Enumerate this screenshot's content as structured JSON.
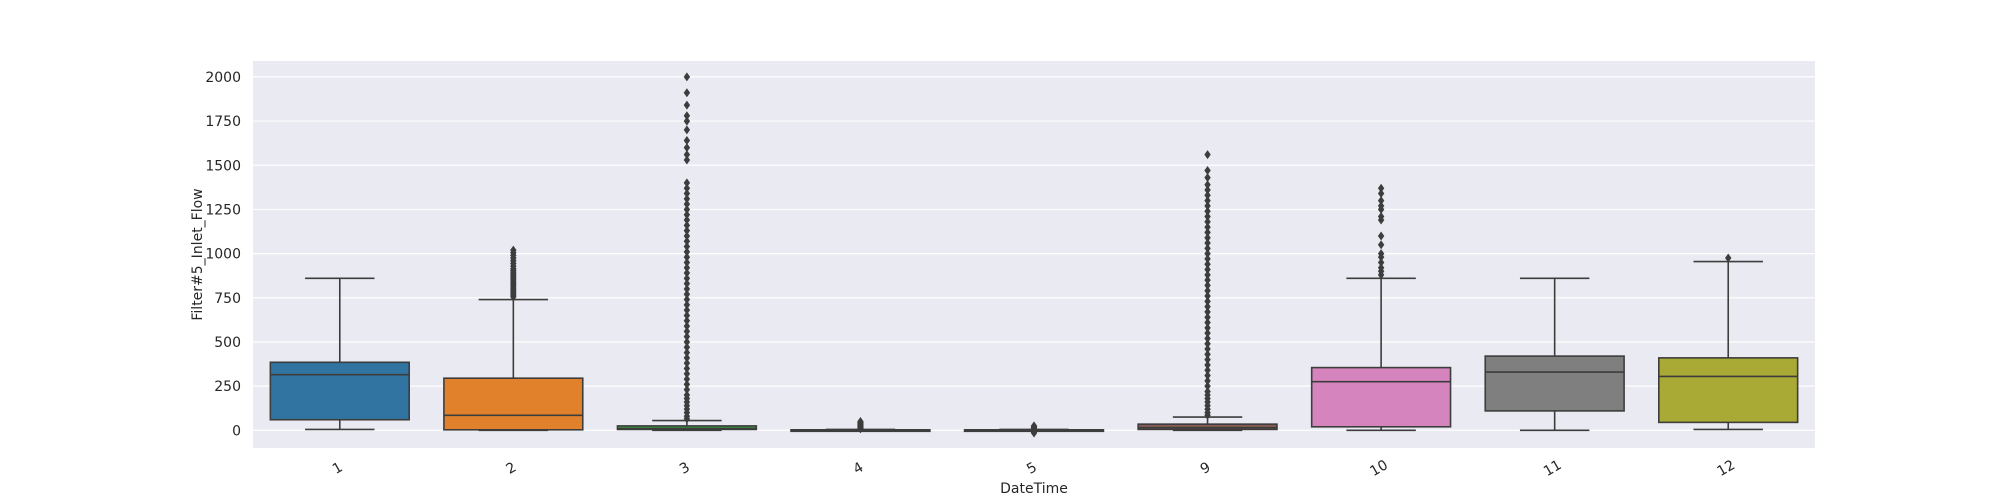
{
  "chart_data": {
    "type": "box",
    "title": "",
    "xlabel": "DateTime",
    "ylabel": "Filter#5_Inlet_Flow",
    "ylim": [
      -100,
      2090
    ],
    "yticks": [
      0,
      250,
      500,
      750,
      1000,
      1250,
      1500,
      1750,
      2000
    ],
    "grid": true,
    "background": "#eaeaf2",
    "categories": [
      "1",
      "2",
      "3",
      "4",
      "5",
      "9",
      "10",
      "11",
      "12"
    ],
    "boxes": [
      {
        "category": "1",
        "color": "#3274a1",
        "whisker_low": 5,
        "q1": 60,
        "median": 315,
        "q3": 385,
        "whisker_high": 860,
        "outliers": []
      },
      {
        "category": "2",
        "color": "#e1812c",
        "whisker_low": 0,
        "q1": 3,
        "median": 85,
        "q3": 295,
        "whisker_high": 740,
        "outliers": [
          755,
          765,
          775,
          785,
          795,
          805,
          815,
          825,
          835,
          845,
          855,
          865,
          875,
          885,
          895,
          905,
          915,
          930,
          945,
          960,
          975,
          990,
          1005,
          1020
        ]
      },
      {
        "category": "3",
        "color": "#3a923a",
        "whisker_low": 0,
        "q1": 5,
        "median": 10,
        "q3": 25,
        "whisker_high": 55,
        "outliers": [
          65,
          80,
          100,
          120,
          140,
          160,
          180,
          200,
          230,
          260,
          290,
          320,
          350,
          380,
          410,
          440,
          470,
          500,
          530,
          560,
          590,
          620,
          650,
          680,
          710,
          740,
          770,
          800,
          830,
          860,
          890,
          920,
          950,
          980,
          1010,
          1040,
          1070,
          1100,
          1130,
          1160,
          1190,
          1220,
          1250,
          1280,
          1310,
          1340,
          1370,
          1400,
          1530,
          1560,
          1600,
          1640,
          1700,
          1750,
          1780,
          1840,
          1910,
          2000
        ]
      },
      {
        "category": "4",
        "color": "#c03d3e",
        "whisker_low": 0,
        "q1": 0,
        "median": 0,
        "q3": 3,
        "whisker_high": 5,
        "outliers": [
          8,
          12,
          16,
          20,
          25,
          30,
          35,
          40,
          45,
          50
        ]
      },
      {
        "category": "5",
        "color": "#9372b2",
        "whisker_low": 0,
        "q1": 0,
        "median": 0,
        "q3": 3,
        "whisker_high": 5,
        "outliers": [
          -15,
          -10,
          8,
          12,
          16,
          20,
          25
        ]
      },
      {
        "category": "9",
        "color": "#845b53",
        "whisker_low": 0,
        "q1": 5,
        "median": 15,
        "q3": 35,
        "whisker_high": 75,
        "outliers": [
          85,
          100,
          120,
          140,
          160,
          180,
          200,
          220,
          250,
          280,
          310,
          340,
          370,
          400,
          430,
          460,
          490,
          520,
          550,
          580,
          610,
          640,
          670,
          700,
          730,
          760,
          790,
          820,
          850,
          880,
          910,
          940,
          970,
          1000,
          1030,
          1060,
          1090,
          1120,
          1150,
          1180,
          1210,
          1240,
          1270,
          1300,
          1330,
          1360,
          1390,
          1430,
          1470,
          1560
        ]
      },
      {
        "category": "10",
        "color": "#d684bd",
        "whisker_low": 0,
        "q1": 20,
        "median": 275,
        "q3": 355,
        "whisker_high": 860,
        "outliers": [
          880,
          900,
          920,
          950,
          980,
          1000,
          1050,
          1100,
          1190,
          1210,
          1250,
          1270,
          1300,
          1340,
          1370
        ]
      },
      {
        "category": "11",
        "color": "#7f7f7f",
        "whisker_low": 0,
        "q1": 110,
        "median": 330,
        "q3": 420,
        "whisker_high": 860,
        "outliers": []
      },
      {
        "category": "12",
        "color": "#a9aa35",
        "whisker_low": 5,
        "q1": 45,
        "median": 305,
        "q3": 410,
        "whisker_high": 955,
        "outliers": [
          975
        ]
      }
    ]
  }
}
